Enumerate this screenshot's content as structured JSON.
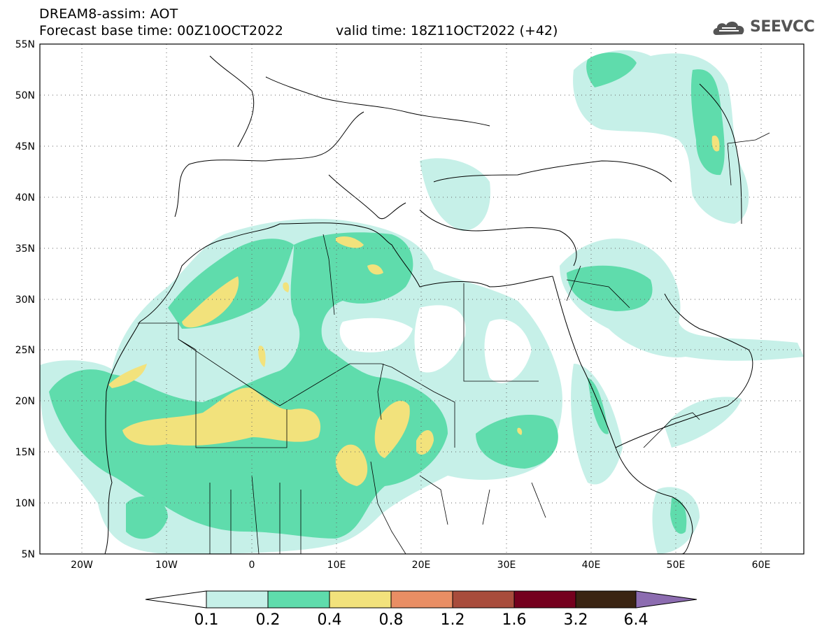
{
  "header": {
    "title": "DREAM8-assim: AOT",
    "base_time": "Forecast base time: 00Z10OCT2022",
    "valid_time": "valid time: 18Z11OCT2022 (+42)"
  },
  "logo": {
    "text": "SEEVCCC",
    "icon": "cloud-logo-icon"
  },
  "map": {
    "lon_range": [
      -25,
      65
    ],
    "lat_range": [
      5,
      55
    ],
    "lat_labels": [
      "55N",
      "50N",
      "45N",
      "40N",
      "35N",
      "30N",
      "25N",
      "20N",
      "15N",
      "10N",
      "5N"
    ],
    "lon_labels": [
      "20W",
      "10W",
      "0",
      "10E",
      "20E",
      "30E",
      "40E",
      "50E",
      "60E"
    ],
    "grid": "dotted"
  },
  "colorbar": {
    "levels": [
      "0.1",
      "0.2",
      "0.4",
      "0.8",
      "1.2",
      "1.6",
      "3.2",
      "6.4"
    ],
    "colors": [
      "#ffffff",
      "#c6f0e8",
      "#5fdcac",
      "#f2e27c",
      "#e98e64",
      "#a84c3c",
      "#74001e",
      "#3a2412",
      "#8c6cb0"
    ]
  },
  "chart_data": {
    "type": "heatmap",
    "field": "AOT",
    "legend_placement": "bottom"
  }
}
